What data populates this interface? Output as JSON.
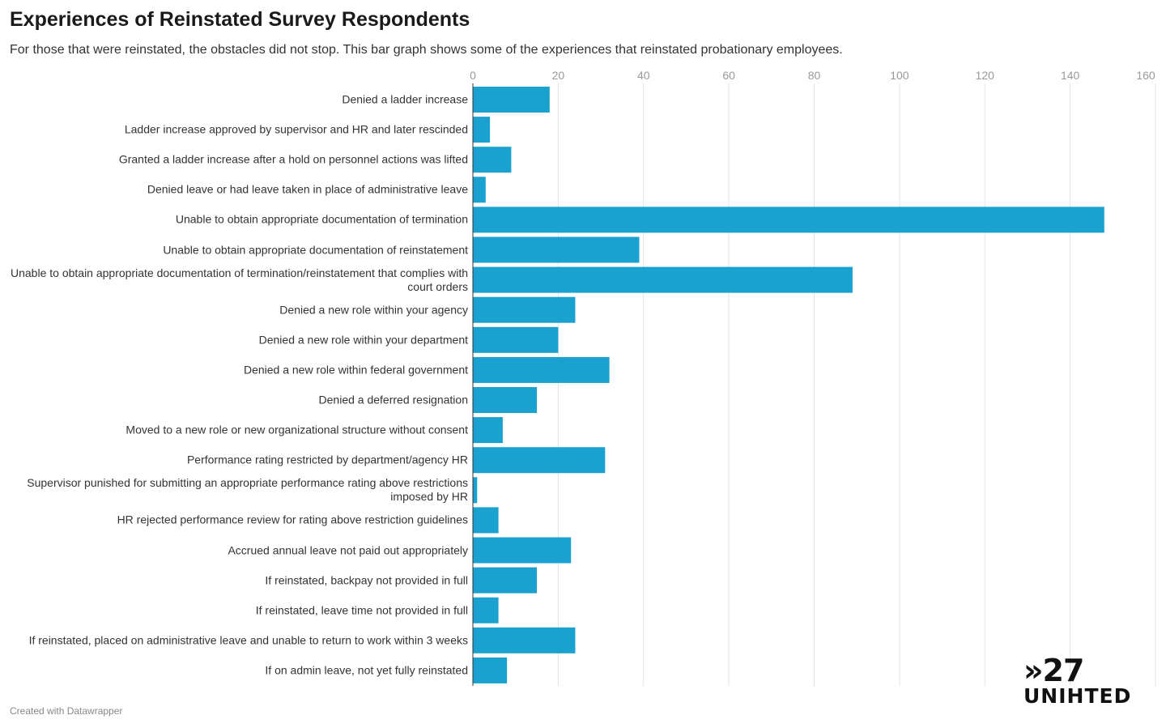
{
  "chart_data": {
    "type": "bar",
    "title": "Experiences of Reinstated Survey Respondents",
    "subtitle": "For those that were reinstated, the obstacles did not stop. This bar graph shows some of the experiences that reinstated probationary employees.",
    "categories": [
      "Denied a ladder increase",
      "Ladder increase approved by supervisor and HR and later rescinded",
      "Granted a ladder increase after a hold on personnel actions was lifted",
      "Denied leave or had leave taken in place of administrative leave",
      "Unable to obtain appropriate documentation of termination",
      "Unable to obtain appropriate documentation of reinstatement",
      "Unable to obtain appropriate documentation of termination/reinstatement that complies with court orders",
      "Denied a new role within your agency",
      "Denied a new role within your department",
      "Denied a new role within federal government",
      "Denied a deferred resignation",
      "Moved to a new role or new organizational structure without consent",
      "Performance rating restricted by department/agency HR",
      "Supervisor punished for submitting an appropriate performance rating above restrictions imposed by HR",
      "HR rejected performance review for rating above restriction guidelines",
      "Accrued annual leave not paid out appropriately",
      "If reinstated, backpay not provided in full",
      "If reinstated, leave time not provided in full",
      "If reinstated, placed on administrative leave and unable to return to work within 3 weeks",
      "If on admin leave, not yet fully reinstated"
    ],
    "values": [
      18,
      4,
      9,
      3,
      148,
      39,
      89,
      24,
      20,
      32,
      15,
      7,
      31,
      1,
      6,
      23,
      15,
      6,
      24,
      8
    ],
    "color": "#1ba1cf",
    "xlim": [
      0,
      160
    ],
    "xticks": [
      0,
      20,
      40,
      60,
      80,
      100,
      120,
      140,
      160
    ],
    "grid": true
  },
  "footer": {
    "credit": "Created with Datawrapper",
    "logo_line1": "»27",
    "logo_line2": "UNIHTED"
  }
}
